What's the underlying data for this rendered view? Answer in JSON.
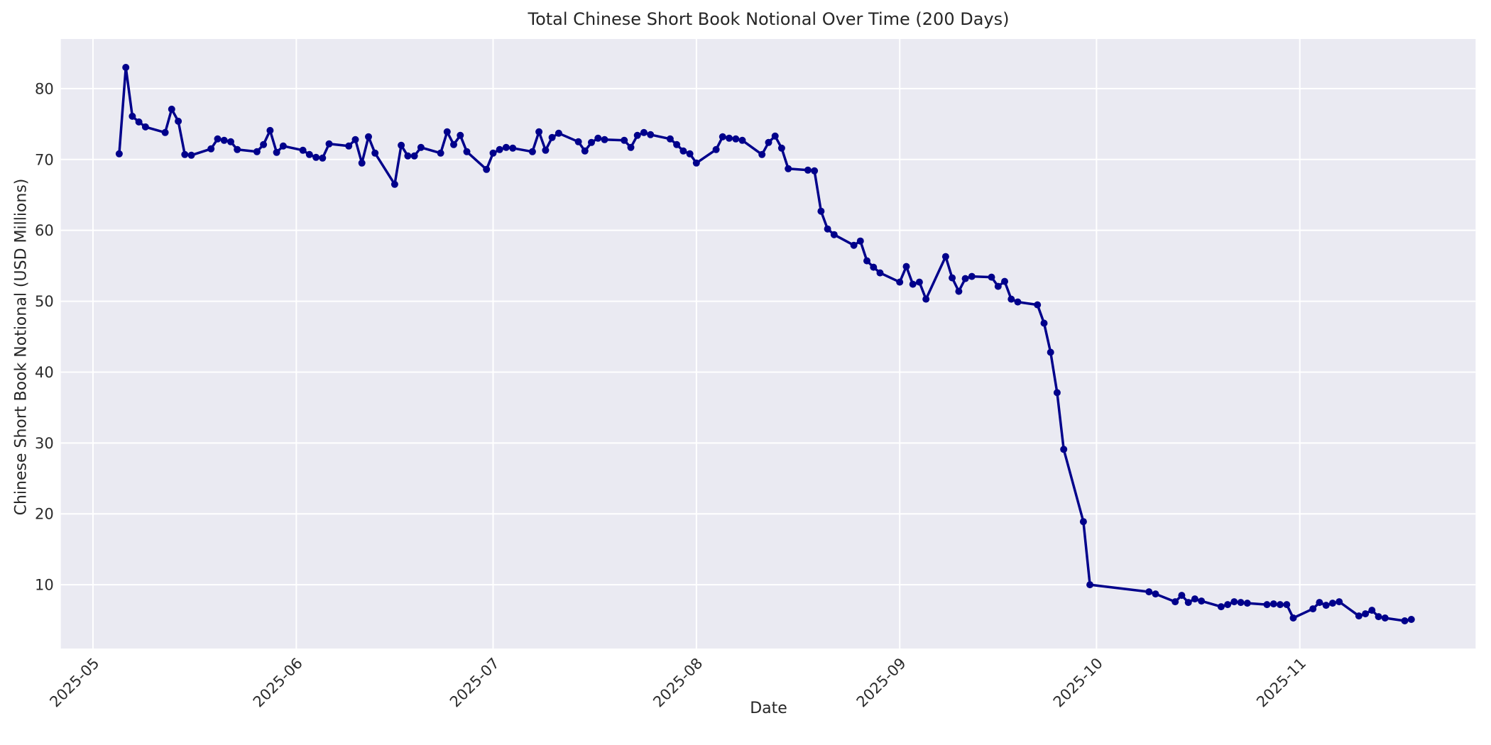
{
  "figure": {
    "background_color": "#ffffff"
  },
  "chart_data": {
    "type": "line",
    "title": "Total Chinese Short Book Notional Over Time (200 Days)",
    "xlabel": "Date",
    "ylabel": "Chinese Short Book Notional (USD Millions)",
    "legend": null,
    "grid": true,
    "x_ticks": [
      {
        "date": "2025-05-01",
        "label": "2025-05"
      },
      {
        "date": "2025-06-01",
        "label": "2025-06"
      },
      {
        "date": "2025-07-01",
        "label": "2025-07"
      },
      {
        "date": "2025-08-01",
        "label": "2025-08"
      },
      {
        "date": "2025-09-01",
        "label": "2025-09"
      },
      {
        "date": "2025-10-01",
        "label": "2025-10"
      },
      {
        "date": "2025-11-01",
        "label": "2025-11"
      }
    ],
    "y_ticks": [
      10,
      20,
      30,
      40,
      50,
      60,
      70,
      80
    ],
    "ylim": [
      1.0,
      87.0
    ],
    "xlim_days_from_2025_05_01": [
      -4.9,
      210.8
    ],
    "style": {
      "line_color": "#00008b",
      "marker": "circle",
      "marker_radius": 5,
      "line_width": 3.5,
      "plot_background": "#eaeaf2",
      "grid_color": "#ffffff",
      "text_color": "#262626"
    },
    "series": [
      {
        "name": "Total Chinese Short Book Notional (USD Millions)",
        "dates": [
          "2025-05-05",
          "2025-05-06",
          "2025-05-07",
          "2025-05-08",
          "2025-05-09",
          "2025-05-12",
          "2025-05-13",
          "2025-05-14",
          "2025-05-15",
          "2025-05-16",
          "2025-05-19",
          "2025-05-20",
          "2025-05-21",
          "2025-05-22",
          "2025-05-23",
          "2025-05-26",
          "2025-05-27",
          "2025-05-28",
          "2025-05-29",
          "2025-05-30",
          "2025-06-02",
          "2025-06-03",
          "2025-06-04",
          "2025-06-05",
          "2025-06-06",
          "2025-06-09",
          "2025-06-10",
          "2025-06-11",
          "2025-06-12",
          "2025-06-13",
          "2025-06-16",
          "2025-06-17",
          "2025-06-18",
          "2025-06-19",
          "2025-06-20",
          "2025-06-23",
          "2025-06-24",
          "2025-06-25",
          "2025-06-26",
          "2025-06-27",
          "2025-06-30",
          "2025-07-01",
          "2025-07-02",
          "2025-07-03",
          "2025-07-04",
          "2025-07-07",
          "2025-07-08",
          "2025-07-09",
          "2025-07-10",
          "2025-07-11",
          "2025-07-14",
          "2025-07-15",
          "2025-07-16",
          "2025-07-17",
          "2025-07-18",
          "2025-07-21",
          "2025-07-22",
          "2025-07-23",
          "2025-07-24",
          "2025-07-25",
          "2025-07-28",
          "2025-07-29",
          "2025-07-30",
          "2025-07-31",
          "2025-08-01",
          "2025-08-04",
          "2025-08-05",
          "2025-08-06",
          "2025-08-07",
          "2025-08-08",
          "2025-08-11",
          "2025-08-12",
          "2025-08-13",
          "2025-08-14",
          "2025-08-15",
          "2025-08-18",
          "2025-08-19",
          "2025-08-20",
          "2025-08-21",
          "2025-08-22",
          "2025-08-25",
          "2025-08-26",
          "2025-08-27",
          "2025-08-28",
          "2025-08-29",
          "2025-09-01",
          "2025-09-02",
          "2025-09-03",
          "2025-09-04",
          "2025-09-05",
          "2025-09-08",
          "2025-09-09",
          "2025-09-10",
          "2025-09-11",
          "2025-09-12",
          "2025-09-15",
          "2025-09-16",
          "2025-09-17",
          "2025-09-18",
          "2025-09-19",
          "2025-09-22",
          "2025-09-23",
          "2025-09-24",
          "2025-09-25",
          "2025-09-26",
          "2025-09-29",
          "2025-09-30",
          "2025-10-09",
          "2025-10-10",
          "2025-10-13",
          "2025-10-14",
          "2025-10-15",
          "2025-10-16",
          "2025-10-17",
          "2025-10-20",
          "2025-10-21",
          "2025-10-22",
          "2025-10-23",
          "2025-10-24",
          "2025-10-27",
          "2025-10-28",
          "2025-10-29",
          "2025-10-30",
          "2025-10-31",
          "2025-11-03",
          "2025-11-04",
          "2025-11-05",
          "2025-11-06",
          "2025-11-07",
          "2025-11-10",
          "2025-11-11",
          "2025-11-12",
          "2025-11-13",
          "2025-11-14",
          "2025-11-17",
          "2025-11-18"
        ],
        "values": [
          70.8,
          83.0,
          76.1,
          75.3,
          74.6,
          73.8,
          77.1,
          75.4,
          70.7,
          70.6,
          71.5,
          72.9,
          72.7,
          72.5,
          71.4,
          71.1,
          72.1,
          74.1,
          71.0,
          71.9,
          71.3,
          70.7,
          70.3,
          70.2,
          72.2,
          71.9,
          72.8,
          69.5,
          73.2,
          70.9,
          66.5,
          72.0,
          70.5,
          70.5,
          71.7,
          70.9,
          73.9,
          72.1,
          73.4,
          71.1,
          68.6,
          70.9,
          71.4,
          71.7,
          71.6,
          71.1,
          73.9,
          71.3,
          73.1,
          73.7,
          72.5,
          71.2,
          72.4,
          73.0,
          72.8,
          72.7,
          71.7,
          73.4,
          73.8,
          73.5,
          72.9,
          72.1,
          71.2,
          70.8,
          69.5,
          71.4,
          73.2,
          73.0,
          72.9,
          72.7,
          70.7,
          72.4,
          73.3,
          71.6,
          68.7,
          68.5,
          68.4,
          62.7,
          60.2,
          59.4,
          57.9,
          58.5,
          55.7,
          54.8,
          54.0,
          52.7,
          54.9,
          52.4,
          52.7,
          50.3,
          56.3,
          53.3,
          51.4,
          53.2,
          53.5,
          53.4,
          52.1,
          52.8,
          50.3,
          49.9,
          49.5,
          46.9,
          42.8,
          37.1,
          29.1,
          18.9,
          10.0,
          9.0,
          8.7,
          7.6,
          8.5,
          7.5,
          8.0,
          7.7,
          6.9,
          7.2,
          7.6,
          7.5,
          7.4,
          7.2,
          7.3,
          7.2,
          7.2,
          5.3,
          6.6,
          7.5,
          7.1,
          7.4,
          7.6,
          5.6,
          5.9,
          6.4,
          5.5,
          5.3,
          4.9,
          5.1
        ]
      }
    ]
  }
}
